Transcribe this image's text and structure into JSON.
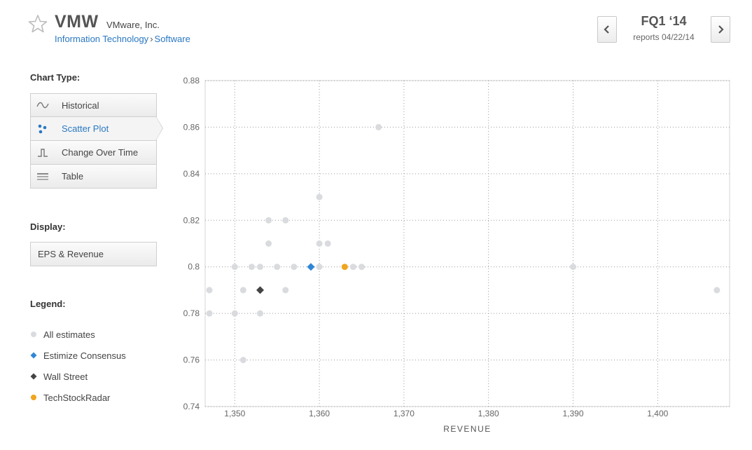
{
  "header": {
    "ticker": "VMW",
    "company": "VMware, Inc.",
    "sector": "Information Technology",
    "breadcrumb_sep": "›",
    "industry": "Software",
    "quarter": "FQ1 ‘14",
    "reports": "reports 04/22/14"
  },
  "sidebar": {
    "chart_type_label": "Chart Type:",
    "chart_types": [
      {
        "label": "Historical",
        "icon": "wave-icon"
      },
      {
        "label": "Scatter Plot",
        "icon": "scatter-icon",
        "active": true
      },
      {
        "label": "Change Over Time",
        "icon": "step-icon"
      },
      {
        "label": "Table",
        "icon": "table-icon"
      }
    ],
    "display_label": "Display:",
    "display_value": "EPS & Revenue",
    "legend_label": "Legend:",
    "legend": [
      {
        "label": "All estimates",
        "color": "#d9dbde",
        "shape": "circle"
      },
      {
        "label": "Estimize Consensus",
        "color": "#2f86d6",
        "shape": "diamond"
      },
      {
        "label": "Wall Street",
        "color": "#444444",
        "shape": "diamond"
      },
      {
        "label": "TechStockRadar",
        "color": "#f0a51e",
        "shape": "circle"
      }
    ]
  },
  "chart_data": {
    "type": "scatter",
    "xlabel": "REVENUE",
    "ylabel": "",
    "xlim": [
      1346.5,
      1408.5
    ],
    "ylim": [
      0.74,
      0.88
    ],
    "x_ticks": [
      1350,
      1360,
      1370,
      1380,
      1390,
      1400
    ],
    "x_tick_labels": [
      "1,350",
      "1,360",
      "1,370",
      "1,380",
      "1,390",
      "1,400"
    ],
    "y_ticks": [
      0.74,
      0.76,
      0.78,
      0.8,
      0.82,
      0.84,
      0.86,
      0.88
    ],
    "y_tick_labels": [
      "0.74",
      "0.76",
      "0.78",
      "0.8",
      "0.82",
      "0.84",
      "0.86",
      "0.88"
    ],
    "grid": true,
    "series": [
      {
        "name": "All estimates",
        "color": "#d9dbde",
        "shape": "circle",
        "points": [
          [
            1367,
            0.86
          ],
          [
            1360,
            0.83
          ],
          [
            1354,
            0.82
          ],
          [
            1356,
            0.82
          ],
          [
            1354,
            0.81
          ],
          [
            1360,
            0.81
          ],
          [
            1361,
            0.81
          ],
          [
            1350,
            0.8
          ],
          [
            1352,
            0.8
          ],
          [
            1353,
            0.8
          ],
          [
            1355,
            0.8
          ],
          [
            1357,
            0.8
          ],
          [
            1360,
            0.8
          ],
          [
            1364,
            0.8
          ],
          [
            1365,
            0.8
          ],
          [
            1390,
            0.8
          ],
          [
            1347,
            0.79
          ],
          [
            1351,
            0.79
          ],
          [
            1356,
            0.79
          ],
          [
            1407,
            0.79
          ],
          [
            1347,
            0.78
          ],
          [
            1350,
            0.78
          ],
          [
            1353,
            0.78
          ],
          [
            1351,
            0.76
          ]
        ]
      },
      {
        "name": "Estimize Consensus",
        "color": "#2f86d6",
        "shape": "diamond",
        "points": [
          [
            1359,
            0.8
          ]
        ]
      },
      {
        "name": "Wall Street",
        "color": "#444444",
        "shape": "diamond",
        "points": [
          [
            1353,
            0.79
          ]
        ]
      },
      {
        "name": "TechStockRadar",
        "color": "#f0a51e",
        "shape": "circle",
        "points": [
          [
            1363,
            0.8
          ]
        ]
      }
    ]
  }
}
